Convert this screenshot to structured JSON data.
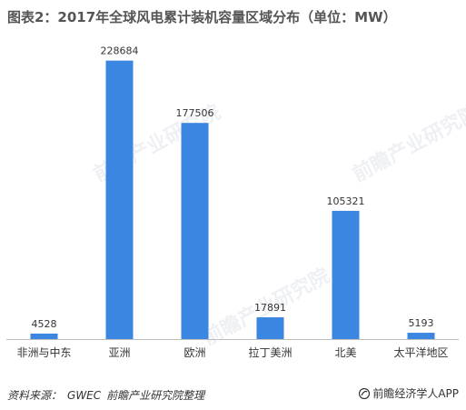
{
  "title": "图表2：2017年全球风电累计装机容量区域分布（单位：MW）",
  "chart_data": {
    "type": "bar",
    "categories": [
      "非洲与中东",
      "亚洲",
      "欧洲",
      "拉丁美洲",
      "北美",
      "太平洋地区"
    ],
    "values": [
      4528,
      228684,
      177506,
      17891,
      105321,
      5193
    ],
    "value_labels": [
      "4528",
      "228684",
      "177506",
      "17891",
      "105321",
      "5193"
    ],
    "bar_color": "#3b86e0",
    "ylim": [
      0,
      240000
    ],
    "grid": false,
    "legend": "none"
  },
  "footer": {
    "source_label": "资料来源：",
    "source_org": "GWEC",
    "source_note": "前瞻产业研究院整理",
    "brand": "前瞻经济学人APP",
    "brand_icon": "brand-logo-icon"
  },
  "watermark": {
    "text": "前瞻产业研究院"
  }
}
